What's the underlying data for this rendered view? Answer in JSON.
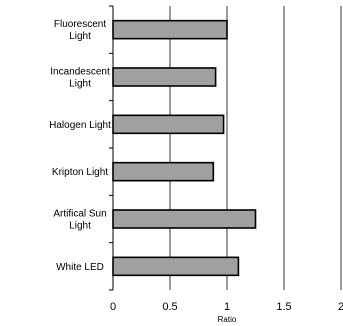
{
  "chart_data": {
    "type": "bar",
    "orientation": "horizontal",
    "title": "",
    "xlabel": "Ratio",
    "ylabel": "",
    "categories": [
      [
        "Fluorescent",
        "Light"
      ],
      [
        "Incandescent",
        "Light"
      ],
      [
        "Halogen Light"
      ],
      [
        "Kripton Light"
      ],
      [
        "Artifical Sun",
        "Light"
      ],
      [
        "White LED"
      ]
    ],
    "values": [
      1.0,
      0.9,
      0.97,
      0.88,
      1.25,
      1.1
    ],
    "xlim": [
      0,
      2
    ],
    "xticks": [
      "0",
      "0.5",
      "1",
      "1.5",
      "2"
    ],
    "grid": "vertical",
    "bar_color": "#a0a0a0",
    "legend": "none"
  }
}
